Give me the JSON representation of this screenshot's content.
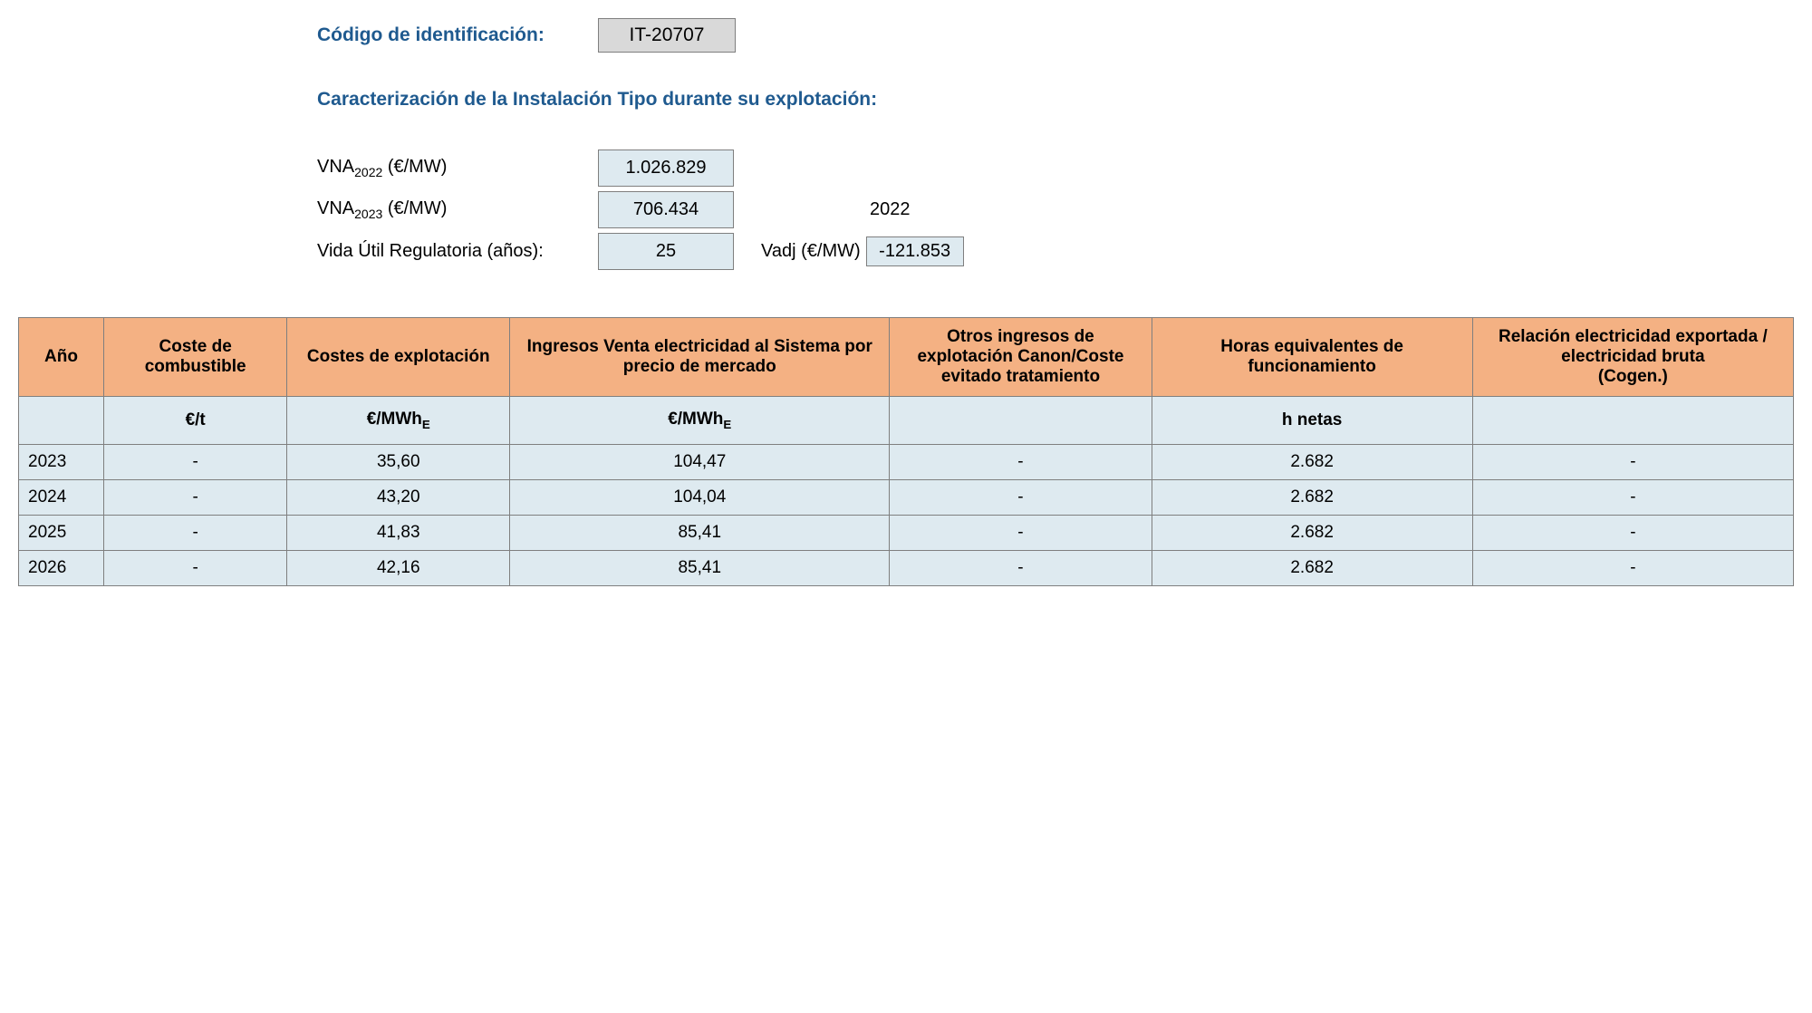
{
  "header": {
    "id_label": "Código de identificación:",
    "id_value": "IT-20707"
  },
  "section_title": "Caracterización de la Instalación Tipo durante su explotación:",
  "params": {
    "vna_2022_label_pre": "VNA",
    "vna_2022_sub": "2022",
    "vna_2022_label_post": " (€/MW)",
    "vna_2022_value": "1.026.829",
    "vna_2023_label_pre": "VNA",
    "vna_2023_sub": "2023",
    "vna_2023_label_post": " (€/MW)",
    "vna_2023_value": "706.434",
    "year_ref": "2022",
    "vida_label": "Vida Útil Regulatoria (años):",
    "vida_value": "25",
    "vadj_label": "Vadj (€/MW)",
    "vadj_value": "-121.853"
  },
  "table": {
    "columns": [
      "Año",
      "Coste de combustible",
      "Costes de explotación",
      "Ingresos Venta electricidad al Sistema por precio de mercado",
      "Otros ingresos de explotación Canon/Coste evitado tratamiento",
      "Horas equivalentes de funcionamiento",
      "Relación electricidad exportada / electricidad bruta\n(Cogen.)"
    ],
    "units": [
      "",
      "€/t",
      "€/MWh",
      "€/MWh",
      "",
      "h netas",
      ""
    ],
    "unit_sub_e": "E",
    "rows": [
      {
        "year": "2023",
        "cells": [
          "-",
          "35,60",
          "104,47",
          "-",
          "2.682",
          "-"
        ]
      },
      {
        "year": "2024",
        "cells": [
          "-",
          "43,20",
          "104,04",
          "-",
          "2.682",
          "-"
        ]
      },
      {
        "year": "2025",
        "cells": [
          "-",
          "41,83",
          "85,41",
          "-",
          "2.682",
          "-"
        ]
      },
      {
        "year": "2026",
        "cells": [
          "-",
          "42,16",
          "85,41",
          "-",
          "2.682",
          "-"
        ]
      }
    ]
  },
  "colors": {
    "header_bg": "#f4b183",
    "cell_bg": "#deeaf0",
    "border": "#7f7f7f",
    "title_color": "#1f5a8f",
    "id_box_bg": "#d9d9d9"
  }
}
